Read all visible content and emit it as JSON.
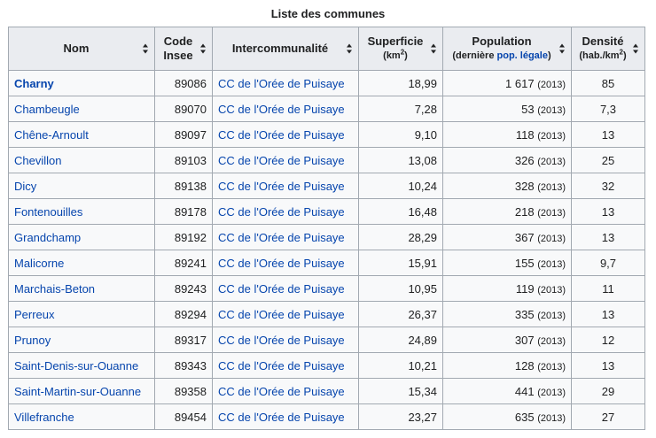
{
  "caption": "Liste des communes",
  "headers": {
    "nom": "Nom",
    "code_line1": "Code",
    "code_line2": "Insee",
    "interco": "Intercommunalité",
    "superficie_line1": "Superficie",
    "superficie_unit_pre": "(km",
    "superficie_unit_sup": "2",
    "superficie_unit_post": ")",
    "population_line1": "Population",
    "population_pre": "(dernière ",
    "population_link": "pop. légale",
    "population_post": ")",
    "densite_line1": "Densité",
    "densite_unit_pre": "(hab./km",
    "densite_unit_sup": "2",
    "densite_unit_post": ")"
  },
  "rows": [
    {
      "nom": "Charny",
      "code": "89086",
      "interco": "CC de l'Orée de Puisaye",
      "superficie": "18,99",
      "population": "1 617",
      "year": "(2013)",
      "densite": "85"
    },
    {
      "nom": "Chambeugle",
      "code": "89070",
      "interco": "CC de l'Orée de Puisaye",
      "superficie": "7,28",
      "population": "53",
      "year": "(2013)",
      "densite": "7,3"
    },
    {
      "nom": "Chêne-Arnoult",
      "code": "89097",
      "interco": "CC de l'Orée de Puisaye",
      "superficie": "9,10",
      "population": "118",
      "year": "(2013)",
      "densite": "13"
    },
    {
      "nom": "Chevillon",
      "code": "89103",
      "interco": "CC de l'Orée de Puisaye",
      "superficie": "13,08",
      "population": "326",
      "year": "(2013)",
      "densite": "25"
    },
    {
      "nom": "Dicy",
      "code": "89138",
      "interco": "CC de l'Orée de Puisaye",
      "superficie": "10,24",
      "population": "328",
      "year": "(2013)",
      "densite": "32"
    },
    {
      "nom": "Fontenouilles",
      "code": "89178",
      "interco": "CC de l'Orée de Puisaye",
      "superficie": "16,48",
      "population": "218",
      "year": "(2013)",
      "densite": "13"
    },
    {
      "nom": "Grandchamp",
      "code": "89192",
      "interco": "CC de l'Orée de Puisaye",
      "superficie": "28,29",
      "population": "367",
      "year": "(2013)",
      "densite": "13"
    },
    {
      "nom": "Malicorne",
      "code": "89241",
      "interco": "CC de l'Orée de Puisaye",
      "superficie": "15,91",
      "population": "155",
      "year": "(2013)",
      "densite": "9,7"
    },
    {
      "nom": "Marchais-Beton",
      "code": "89243",
      "interco": "CC de l'Orée de Puisaye",
      "superficie": "10,95",
      "population": "119",
      "year": "(2013)",
      "densite": "11"
    },
    {
      "nom": "Perreux",
      "code": "89294",
      "interco": "CC de l'Orée de Puisaye",
      "superficie": "26,37",
      "population": "335",
      "year": "(2013)",
      "densite": "13"
    },
    {
      "nom": "Prunoy",
      "code": "89317",
      "interco": "CC de l'Orée de Puisaye",
      "superficie": "24,89",
      "population": "307",
      "year": "(2013)",
      "densite": "12"
    },
    {
      "nom": "Saint-Denis-sur-Ouanne",
      "code": "89343",
      "interco": "CC de l'Orée de Puisaye",
      "superficie": "10,21",
      "population": "128",
      "year": "(2013)",
      "densite": "13"
    },
    {
      "nom": "Saint-Martin-sur-Ouanne",
      "code": "89358",
      "interco": "CC de l'Orée de Puisaye",
      "superficie": "15,34",
      "population": "441",
      "year": "(2013)",
      "densite": "29"
    },
    {
      "nom": "Villefranche",
      "code": "89454",
      "interco": "CC de l'Orée de Puisaye",
      "superficie": "23,27",
      "population": "635",
      "year": "(2013)",
      "densite": "27"
    }
  ]
}
